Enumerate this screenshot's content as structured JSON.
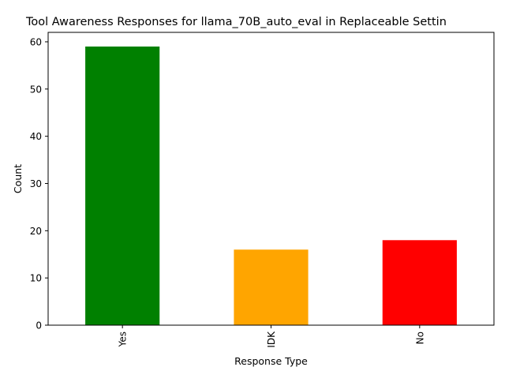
{
  "chart_data": {
    "type": "bar",
    "title": "Tool Awareness Responses for llama_70B_auto_eval in Replaceable Settin",
    "xlabel": "Response Type",
    "ylabel": "Count",
    "categories": [
      "Yes",
      "IDK",
      "No"
    ],
    "values": [
      59,
      16,
      18
    ],
    "colors": [
      "#008000",
      "#FFA500",
      "#FF0000"
    ],
    "ylim": [
      0,
      62
    ],
    "yticks": [
      0,
      10,
      20,
      30,
      40,
      50,
      60
    ],
    "grid": false,
    "legend": "none",
    "x_tick_rotation": "vertical"
  }
}
